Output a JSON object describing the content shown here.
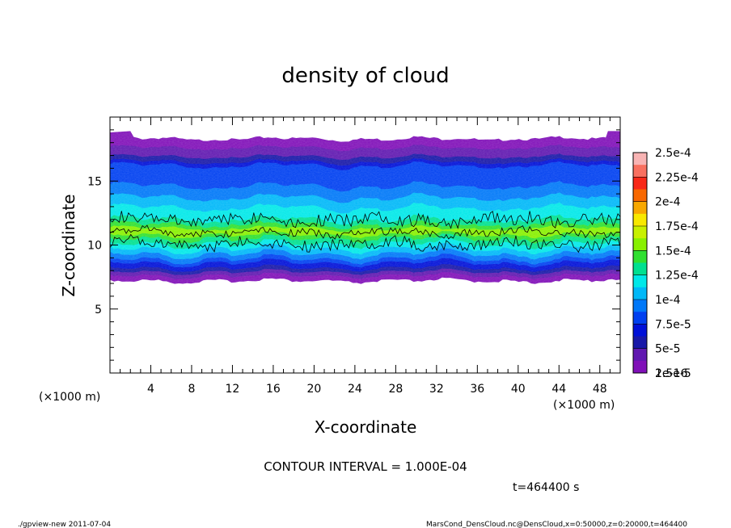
{
  "chart_data": {
    "type": "heatmap",
    "title": "density of cloud",
    "xlabel": "X-coordinate",
    "ylabel": "Z-coordinate",
    "x_unit": "(×1000 m)",
    "y_unit": "(×1000 m)",
    "xlim": [
      0,
      50
    ],
    "ylim": [
      0,
      20
    ],
    "x_ticks": [
      "4",
      "8",
      "12",
      "16",
      "20",
      "24",
      "28",
      "32",
      "36",
      "40",
      "44",
      "48"
    ],
    "y_ticks": [
      "5",
      "10",
      "15"
    ],
    "colorbar": {
      "labels": [
        "2.5e-4",
        "2.25e-4",
        "2e-4",
        "1.75e-4",
        "1.5e-4",
        "1.25e-4",
        "1e-4",
        "7.5e-5",
        "5e-5",
        "2.5e-5",
        "1e-16"
      ],
      "colors": [
        "#f8b4b4",
        "#f87060",
        "#f82818",
        "#f86800",
        "#f8a800",
        "#f8e800",
        "#c8f000",
        "#88f000",
        "#30e030",
        "#00e090",
        "#00e8e8",
        "#00b8f8",
        "#0078f8",
        "#0040f0",
        "#0010d8",
        "#1818a8",
        "#6018b0",
        "#8010b8"
      ]
    },
    "contour_interval": "CONTOUR INTERVAL = 1.000E-04",
    "time_label": "t=464400 s"
  },
  "footer": {
    "left": "./gpview-new  2011-07-04",
    "right": "MarsCond_DensCloud.nc@DensCloud,x=0:50000,z=0:20000,t=464400"
  }
}
